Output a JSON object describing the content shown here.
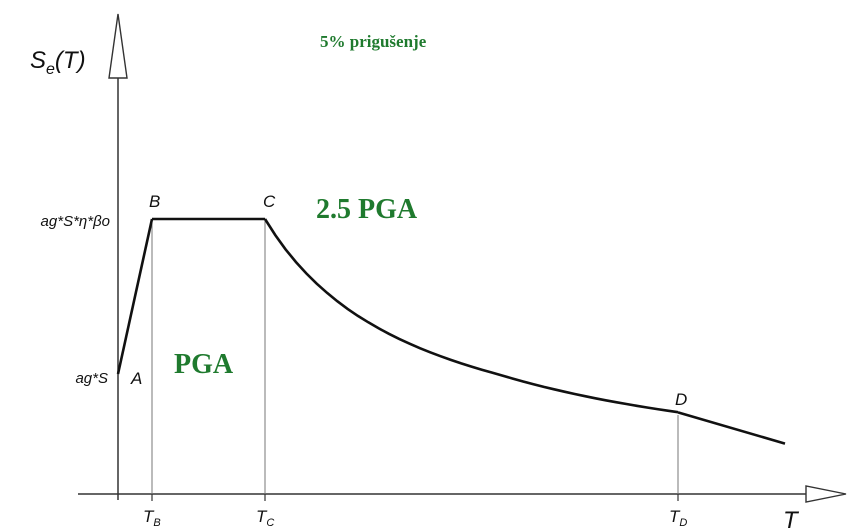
{
  "chart_data": {
    "type": "line",
    "title": "5% prigušenje",
    "ylabel": {
      "main": "S",
      "sub": "e",
      "tail": "(T)"
    },
    "xlabel": "T",
    "colors": {
      "curve": "#111111",
      "axis": "#333333",
      "guides": "#777777",
      "annotation": "#1f7a2e"
    },
    "ytick_labels": {
      "ag_S_eta_beta": "ag*S*η*βo",
      "ag_S": "ag*S"
    },
    "xtick_labels": [
      {
        "main": "T",
        "sub": "B"
      },
      {
        "main": "T",
        "sub": "C"
      },
      {
        "main": "T",
        "sub": "D"
      }
    ],
    "points": [
      {
        "label": "A",
        "x": 0.0,
        "y": 1.0
      },
      {
        "label": "B",
        "x": 0.15,
        "y": 2.5
      },
      {
        "label": "C",
        "x": 0.6,
        "y": 2.5
      },
      {
        "label": "D",
        "x": 2.2,
        "y": 0.68
      },
      {
        "label": "",
        "x": 2.65,
        "y": 0.42
      }
    ],
    "annotations": {
      "plateau": "2.5 PGA",
      "origin": "PGA"
    }
  }
}
